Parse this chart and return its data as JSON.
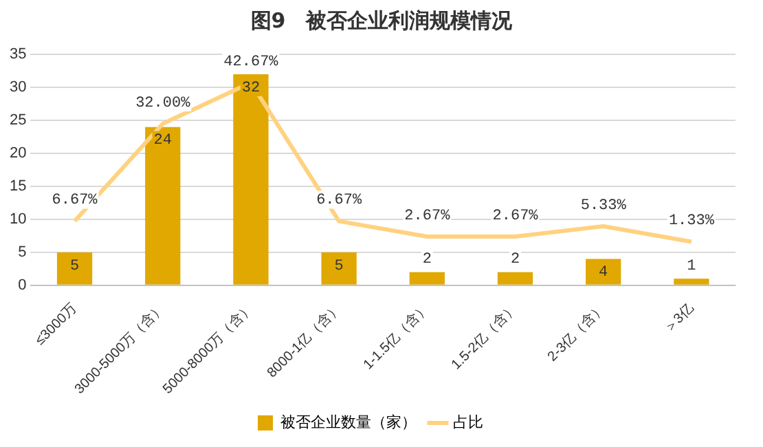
{
  "chart_data": {
    "type": "bar",
    "title": "图9　被否企业利润规模情况",
    "categories": [
      "≤3000万",
      "3000-5000万（含）",
      "5000-8000万（含）",
      "8000-1亿（含）",
      "1-1.5亿（含）",
      "1.5-2亿（含）",
      "2-3亿（含）",
      "＞3亿"
    ],
    "series": [
      {
        "name": "被否企业数量（家）",
        "color": "#e0a800",
        "values": [
          5,
          24,
          32,
          5,
          2,
          2,
          4,
          1
        ],
        "value_labels": [
          "5",
          "24",
          "32",
          "5",
          "2",
          "2",
          "4",
          "1"
        ]
      },
      {
        "name": "占比",
        "type": "line",
        "axis": "y2",
        "color": "#ffd280",
        "values": [
          6.67,
          32.0,
          42.67,
          6.67,
          2.67,
          2.67,
          5.33,
          1.33
        ],
        "value_labels": [
          "6.67%",
          "32.00%",
          "42.67%",
          "6.67%",
          "2.67%",
          "2.67%",
          "5.33%",
          "1.33%"
        ]
      }
    ],
    "ylim": [
      0,
      35
    ],
    "yticks": [
      0,
      5,
      10,
      15,
      20,
      25,
      30,
      35
    ],
    "y2lim": [
      -10,
      50
    ],
    "grid": "y",
    "legend": "bottom",
    "marker": "none",
    "line_style": "solid"
  }
}
